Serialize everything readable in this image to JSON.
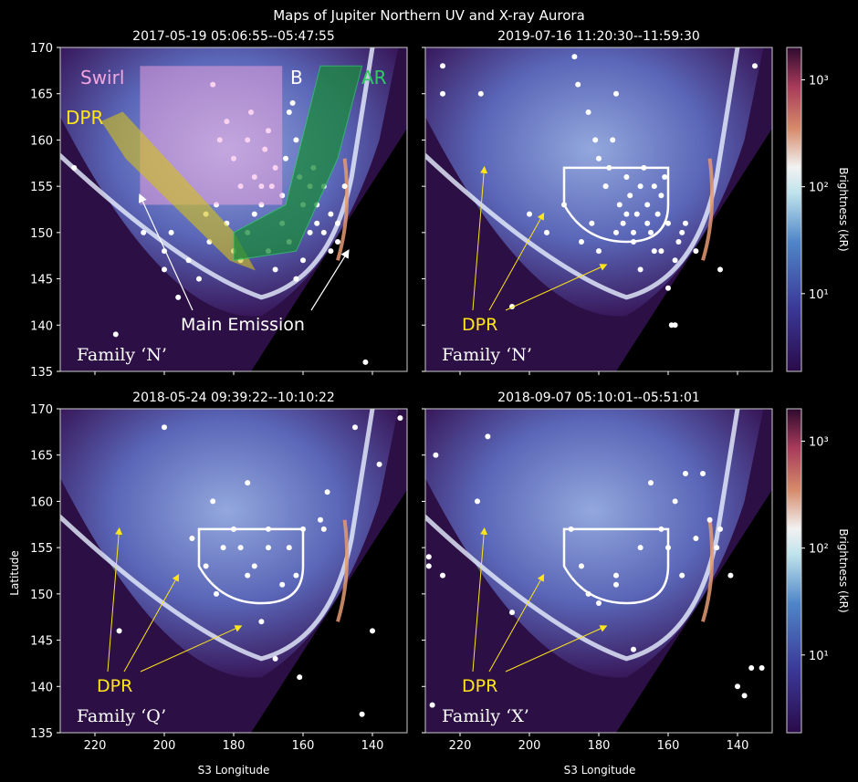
{
  "figure_title": "Maps of Jupiter Northern UV and X-ray Aurora",
  "colorbar": {
    "label": "Brightness (kR)",
    "ticks": [
      "10³",
      "10²",
      "10¹"
    ],
    "scale": "log"
  },
  "axes": {
    "xlabel": "S3 Longitude",
    "ylabel": "Latitude",
    "xlim": [
      230,
      130
    ],
    "ylim": [
      135,
      170
    ],
    "xticks": [
      220,
      200,
      180,
      160,
      140
    ],
    "yticks": [
      135,
      140,
      145,
      150,
      155,
      160,
      165,
      170
    ]
  },
  "region_labels": {
    "swirl": "Swirl",
    "b": "B",
    "ar": "AR",
    "dpr": "DPR",
    "main_emission": "Main Emission"
  },
  "colors": {
    "swirl": "#f3a6df",
    "ar": "#1a8a3a",
    "dpr": "#d4c21a",
    "dpr_text": "#ffe51a",
    "arrow_yellow": "#ffe51a",
    "background_purple": "#3a1a5e",
    "oval_blue": "#8ab0e6"
  },
  "chart_data": [
    {
      "type": "scatter",
      "title": "2017-05-19 05:06:55--05:47:55",
      "family": "Family ‘N’",
      "xlabel": "",
      "ylabel": "Latitude",
      "xlim": [
        230,
        130
      ],
      "ylim": [
        135,
        170
      ],
      "series": [
        {
          "x": [
            226,
            214,
            206,
            200,
            196,
            186,
            184,
            182,
            180,
            178,
            176,
            175,
            174,
            172,
            171,
            170,
            169,
            168,
            166,
            165,
            164,
            163,
            162,
            161,
            160,
            158,
            157,
            156,
            154,
            152,
            150,
            148,
            142,
            200,
            198,
            193,
            190,
            188,
            187,
            185,
            182,
            180,
            178,
            176,
            174,
            172,
            170,
            168,
            166,
            164,
            162,
            160,
            158,
            156,
            154,
            152,
            150
          ],
          "y": [
            157,
            139,
            150,
            146,
            143,
            166,
            160,
            162,
            158,
            155,
            160,
            163,
            156,
            153,
            159,
            161,
            155,
            157,
            154,
            158,
            163,
            164,
            160,
            156,
            153,
            155,
            157,
            151,
            150,
            152,
            149,
            155,
            136,
            148,
            150,
            147,
            145,
            152,
            149,
            153,
            151,
            148,
            147,
            150,
            152,
            155,
            148,
            146,
            151,
            149,
            145,
            147,
            150,
            153,
            155,
            148,
            151
          ]
        }
      ]
    },
    {
      "type": "scatter",
      "title": "2019-07-16 11:20:30--11:59:30",
      "family": "Family ‘N’",
      "dpr_label": "DPR",
      "xlim": [
        230,
        130
      ],
      "ylim": [
        135,
        170
      ],
      "series": [
        {
          "x": [
            225,
            225,
            214,
            205,
            187,
            186,
            183,
            181,
            180,
            178,
            177,
            176,
            175,
            174,
            173,
            172,
            171,
            170,
            169,
            168,
            167,
            166,
            165,
            164,
            163,
            162,
            161,
            160,
            159,
            158,
            157,
            155,
            152,
            145,
            135,
            200,
            195,
            190,
            185,
            182,
            180,
            178,
            175,
            172,
            170,
            168,
            166,
            164,
            162,
            160,
            158,
            156
          ],
          "y": [
            168,
            165,
            165,
            142,
            169,
            166,
            163,
            160,
            158,
            155,
            157,
            160,
            165,
            153,
            151,
            156,
            154,
            150,
            152,
            155,
            157,
            153,
            150,
            148,
            152,
            154,
            156,
            151,
            140,
            140,
            149,
            151,
            148,
            146,
            168,
            152,
            150,
            153,
            149,
            151,
            148,
            155,
            150,
            152,
            149,
            146,
            151,
            155,
            148,
            144,
            147,
            150
          ]
        }
      ]
    },
    {
      "type": "scatter",
      "title": "2018-05-24 09:39:22--10:10:22",
      "family": "Family ‘Q’",
      "dpr_label": "DPR",
      "xlabel": "S3 Longitude",
      "ylabel": "Latitude",
      "xlim": [
        230,
        130
      ],
      "ylim": [
        135,
        170
      ],
      "series": [
        {
          "x": [
            200,
            213,
            192,
            188,
            186,
            183,
            180,
            178,
            176,
            174,
            172,
            170,
            168,
            166,
            164,
            162,
            161,
            160,
            155,
            154,
            153,
            145,
            143,
            140,
            138,
            132,
            185,
            176,
            170
          ],
          "y": [
            168,
            146,
            156,
            153,
            160,
            155,
            157,
            155,
            162,
            153,
            147,
            157,
            143,
            151,
            155,
            152,
            141,
            157,
            158,
            157,
            161,
            168,
            137,
            146,
            164,
            169,
            150,
            152,
            155
          ]
        }
      ]
    },
    {
      "type": "scatter",
      "title": "2018-09-07 05:10:01--05:51:01",
      "family": "Family ‘X’",
      "dpr_label": "DPR",
      "xlabel": "S3 Longitude",
      "xlim": [
        230,
        130
      ],
      "ylim": [
        135,
        170
      ],
      "series": [
        {
          "x": [
            229,
            229,
            228,
            227,
            225,
            215,
            212,
            205,
            188,
            185,
            183,
            175,
            170,
            165,
            162,
            160,
            158,
            156,
            155,
            152,
            150,
            148,
            146,
            145,
            142,
            140,
            138,
            136,
            133,
            180,
            175,
            168
          ],
          "y": [
            154,
            153,
            138,
            165,
            152,
            160,
            167,
            148,
            157,
            153,
            150,
            152,
            144,
            162,
            157,
            155,
            160,
            152,
            163,
            156,
            163,
            158,
            155,
            157,
            152,
            140,
            139,
            142,
            142,
            149,
            151,
            155
          ]
        }
      ]
    }
  ]
}
